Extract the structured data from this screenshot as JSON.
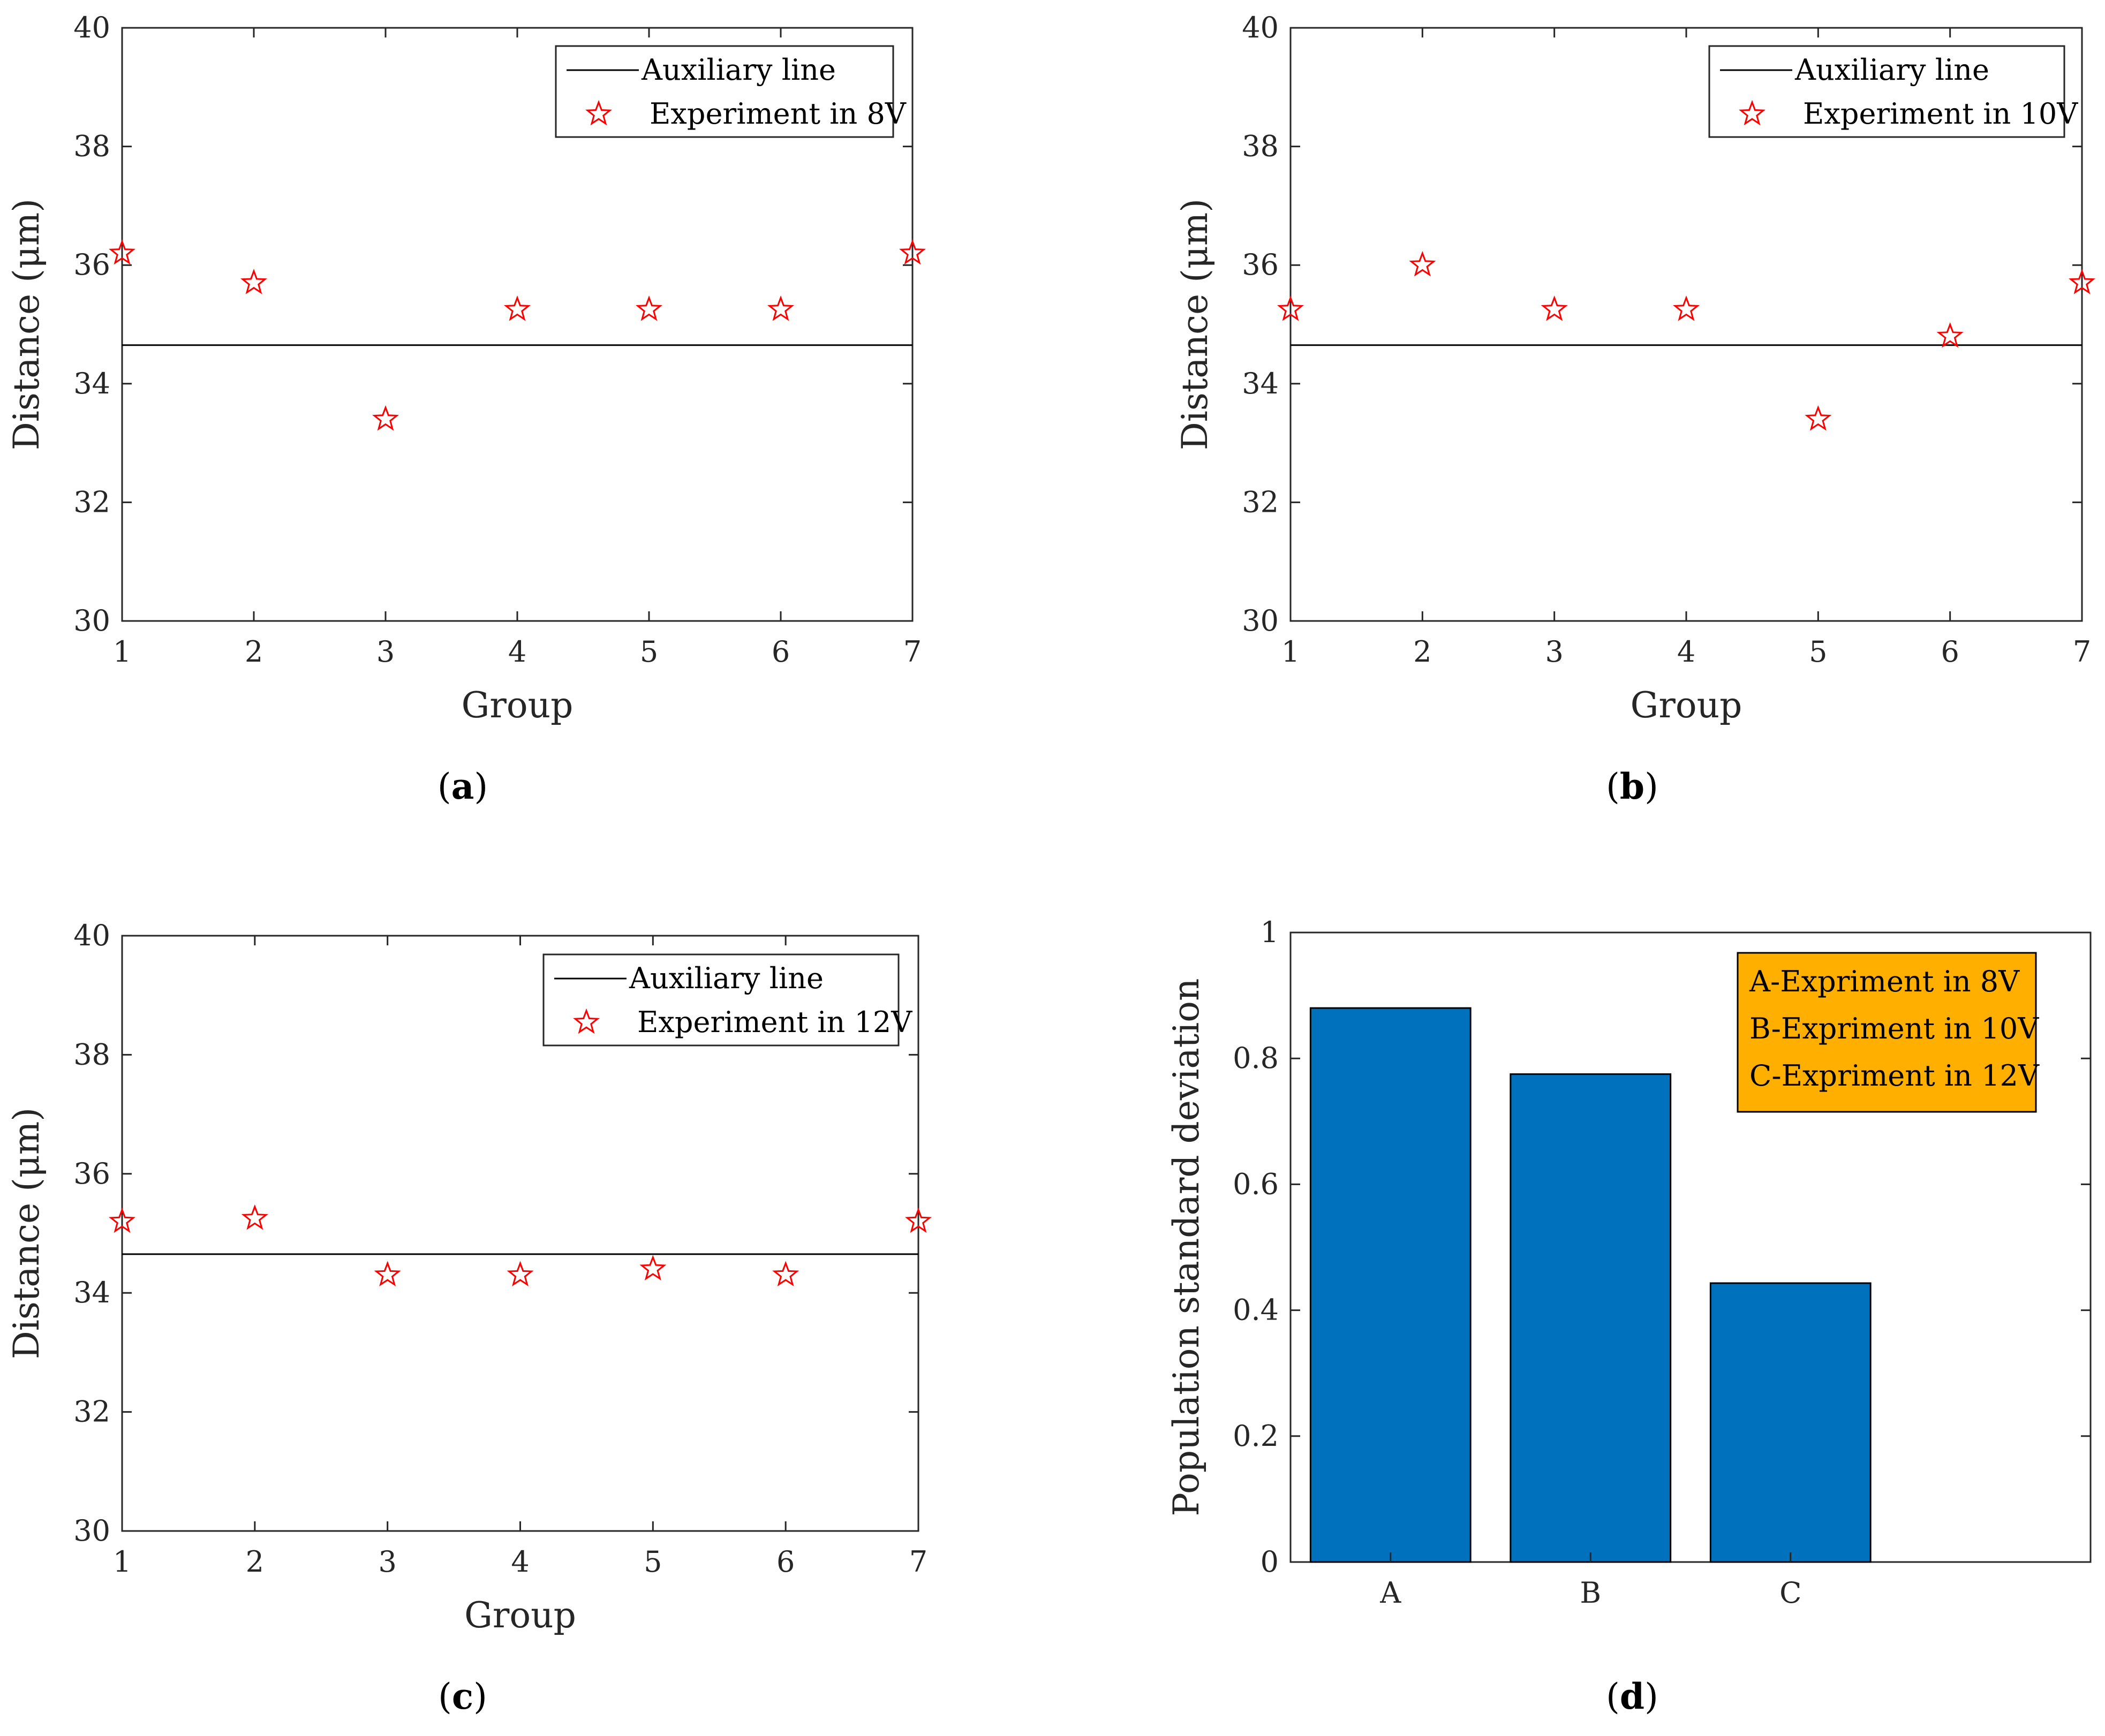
{
  "colors": {
    "marker": "#ff0000",
    "line": "#000000",
    "bar": "#0072bd",
    "legend_box": "#ffaf00",
    "axes": "#262626"
  },
  "chart_data": [
    {
      "type": "scatter",
      "panel": "a",
      "caption": {
        "open": "(",
        "letter": "a",
        "close": ")"
      },
      "xlabel": "Group",
      "ylabel": "Distance (μm)",
      "xlim": [
        1,
        7
      ],
      "ylim": [
        30,
        40
      ],
      "xticks": [
        "1",
        "2",
        "3",
        "4",
        "5",
        "6",
        "7"
      ],
      "yticks": [
        "30",
        "32",
        "34",
        "36",
        "38",
        "40"
      ],
      "auxiliary_line": {
        "name": "Auxiliary line",
        "y": 34.65
      },
      "series": [
        {
          "name": "Experiment in 8V",
          "x": [
            1,
            2,
            3,
            4,
            5,
            6,
            7
          ],
          "y": [
            36.2,
            35.7,
            33.4,
            35.25,
            35.25,
            35.25,
            36.2
          ]
        }
      ],
      "legend": [
        "Auxiliary line",
        "Experiment in 8V"
      ]
    },
    {
      "type": "scatter",
      "panel": "b",
      "caption": {
        "open": "(",
        "letter": "b",
        "close": ")"
      },
      "xlabel": "Group",
      "ylabel": "Distance (μm)",
      "xlim": [
        1,
        7
      ],
      "ylim": [
        30,
        40
      ],
      "xticks": [
        "1",
        "2",
        "3",
        "4",
        "5",
        "6",
        "7"
      ],
      "yticks": [
        "30",
        "32",
        "34",
        "36",
        "38",
        "40"
      ],
      "auxiliary_line": {
        "name": "Auxiliary line",
        "y": 34.65
      },
      "series": [
        {
          "name": "Experiment in 10V",
          "x": [
            1,
            2,
            3,
            4,
            5,
            6,
            7
          ],
          "y": [
            35.25,
            36.0,
            35.25,
            35.25,
            33.4,
            34.8,
            35.7
          ]
        }
      ],
      "legend": [
        "Auxiliary line",
        "Experiment in 10V"
      ]
    },
    {
      "type": "scatter",
      "panel": "c",
      "caption": {
        "open": "(",
        "letter": "c",
        "close": ")"
      },
      "xlabel": "Group",
      "ylabel": "Distance (μm)",
      "xlim": [
        1,
        7
      ],
      "ylim": [
        30,
        40
      ],
      "xticks": [
        "1",
        "2",
        "3",
        "4",
        "5",
        "6",
        "7"
      ],
      "yticks": [
        "30",
        "32",
        "34",
        "36",
        "38",
        "40"
      ],
      "auxiliary_line": {
        "name": "Auxiliary line",
        "y": 34.65
      },
      "series": [
        {
          "name": "Experiment in 12V",
          "x": [
            1,
            2,
            3,
            4,
            5,
            6,
            7
          ],
          "y": [
            35.2,
            35.25,
            34.3,
            34.3,
            34.4,
            34.3,
            35.2
          ]
        }
      ],
      "legend": [
        "Auxiliary line",
        "Experiment in 12V"
      ]
    },
    {
      "type": "bar",
      "panel": "d",
      "caption": {
        "open": "(",
        "letter": "d",
        "close": ")"
      },
      "xlabel": "",
      "ylabel": "Population standard deviation",
      "xlim": [
        0.5,
        4.5
      ],
      "ylim": [
        0,
        1
      ],
      "categories": [
        "A",
        "B",
        "C"
      ],
      "values": [
        0.88,
        0.775,
        0.443
      ],
      "yticks": [
        "0",
        "0.2",
        "0.4",
        "0.6",
        "0.8",
        "1"
      ],
      "legend": [
        "A-Expriment in 8V",
        "B-Expriment in 10V",
        "C-Expriment in 12V"
      ]
    }
  ]
}
